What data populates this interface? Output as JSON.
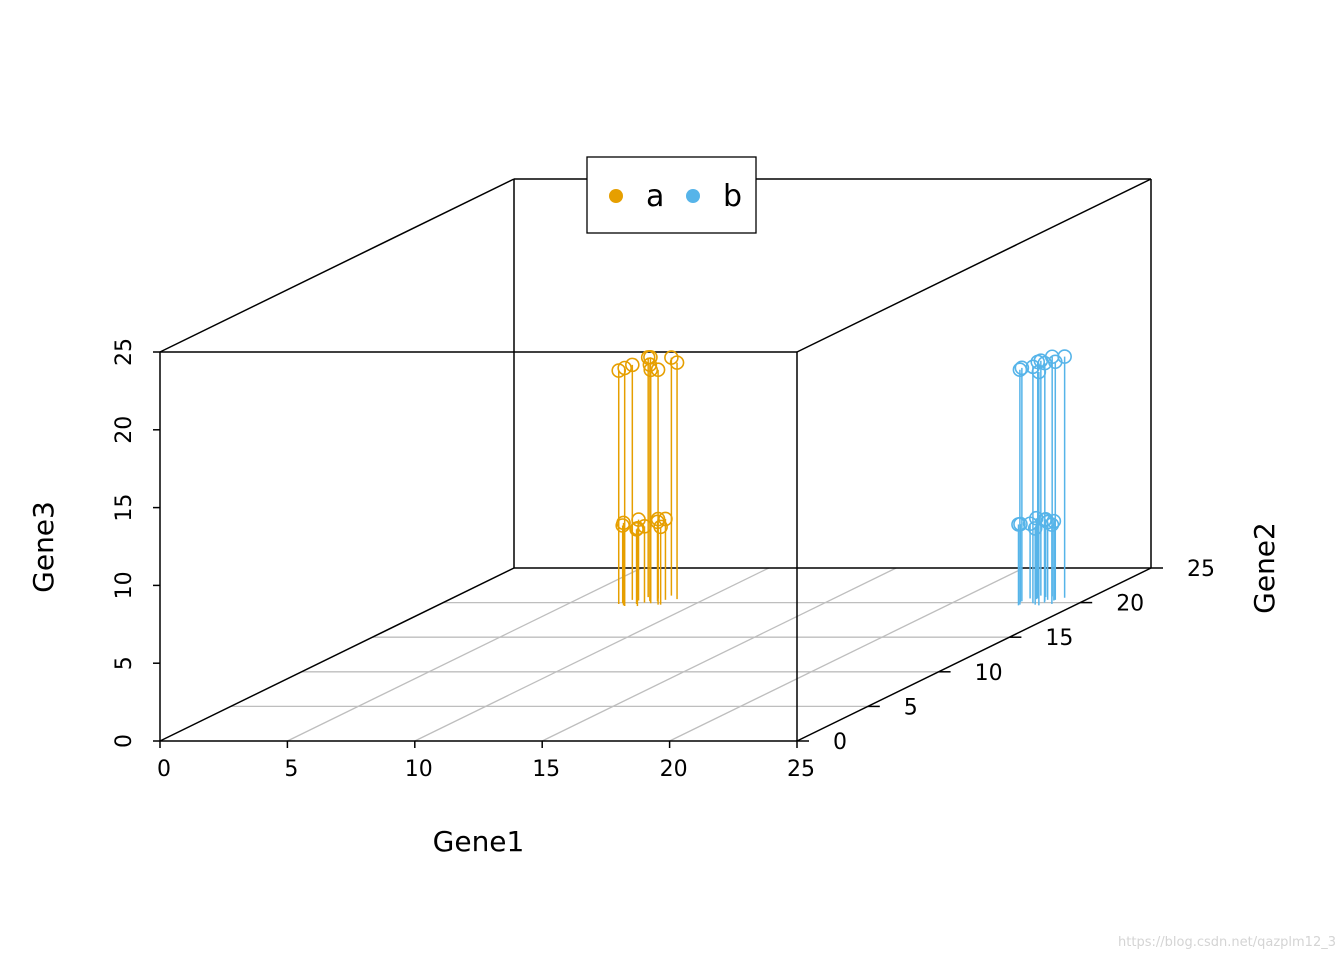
{
  "chart_data": {
    "type": "scatter3d",
    "xlabel": "Gene1",
    "ylabel": "Gene2",
    "zlabel": "Gene3",
    "xlim": [
      0,
      25
    ],
    "ylim": [
      0,
      25
    ],
    "zlim": [
      0,
      25
    ],
    "x_ticks": [
      "0",
      "5",
      "10",
      "15",
      "20",
      "25"
    ],
    "y_ticks": [
      "0",
      "5",
      "10",
      "15",
      "20",
      "25"
    ],
    "z_ticks": [
      "0",
      "5",
      "10",
      "15",
      "20",
      "25"
    ],
    "vertical_lines": true,
    "grid_floor": true,
    "legend_position": "top",
    "series": [
      {
        "name": "a",
        "color": "#E69F00",
        "points": [
          {
            "x": 7.2,
            "y": 20.4,
            "z": 15.1
          },
          {
            "x": 7.6,
            "y": 20.8,
            "z": 15.4
          },
          {
            "x": 8.0,
            "y": 20.2,
            "z": 15.2
          },
          {
            "x": 8.4,
            "y": 21.0,
            "z": 15.3
          },
          {
            "x": 7.0,
            "y": 19.8,
            "z": 15.0
          },
          {
            "x": 8.9,
            "y": 20.5,
            "z": 15.2
          },
          {
            "x": 7.4,
            "y": 19.5,
            "z": 15.3
          },
          {
            "x": 8.2,
            "y": 19.9,
            "z": 15.0
          },
          {
            "x": 7.8,
            "y": 20.6,
            "z": 15.5
          },
          {
            "x": 8.6,
            "y": 19.7,
            "z": 15.1
          },
          {
            "x": 7.1,
            "y": 19.9,
            "z": 5.0
          },
          {
            "x": 7.5,
            "y": 20.3,
            "z": 5.2
          },
          {
            "x": 7.9,
            "y": 20.0,
            "z": 4.9
          },
          {
            "x": 8.3,
            "y": 20.2,
            "z": 5.1
          },
          {
            "x": 8.7,
            "y": 19.7,
            "z": 5.0
          },
          {
            "x": 7.3,
            "y": 19.6,
            "z": 5.3
          },
          {
            "x": 8.1,
            "y": 20.6,
            "z": 5.1
          },
          {
            "x": 7.7,
            "y": 19.8,
            "z": 4.8
          },
          {
            "x": 8.5,
            "y": 20.4,
            "z": 5.2
          },
          {
            "x": 7.9,
            "y": 19.5,
            "z": 5.0
          }
        ]
      },
      {
        "name": "b",
        "color": "#56B4E9",
        "points": [
          {
            "x": 22.6,
            "y": 20.2,
            "z": 15.0
          },
          {
            "x": 23.0,
            "y": 20.6,
            "z": 15.2
          },
          {
            "x": 23.4,
            "y": 20.9,
            "z": 15.4
          },
          {
            "x": 23.8,
            "y": 20.4,
            "z": 15.3
          },
          {
            "x": 22.8,
            "y": 19.7,
            "z": 15.1
          },
          {
            "x": 23.2,
            "y": 19.9,
            "z": 15.2
          },
          {
            "x": 23.6,
            "y": 19.6,
            "z": 15.0
          },
          {
            "x": 24.0,
            "y": 20.7,
            "z": 15.5
          },
          {
            "x": 22.9,
            "y": 21.0,
            "z": 15.1
          },
          {
            "x": 23.5,
            "y": 20.2,
            "z": 15.3
          },
          {
            "x": 22.6,
            "y": 20.1,
            "z": 5.0
          },
          {
            "x": 23.0,
            "y": 20.5,
            "z": 5.2
          },
          {
            "x": 23.4,
            "y": 19.7,
            "z": 4.9
          },
          {
            "x": 23.8,
            "y": 20.3,
            "z": 5.1
          },
          {
            "x": 22.8,
            "y": 19.6,
            "z": 5.2
          },
          {
            "x": 23.2,
            "y": 20.8,
            "z": 5.0
          },
          {
            "x": 23.6,
            "y": 20.0,
            "z": 5.3
          },
          {
            "x": 24.0,
            "y": 19.8,
            "z": 5.1
          },
          {
            "x": 22.7,
            "y": 20.6,
            "z": 4.8
          },
          {
            "x": 23.5,
            "y": 20.4,
            "z": 5.0
          }
        ]
      }
    ]
  },
  "watermark": "https://blog.csdn.net/qazplm12_3"
}
